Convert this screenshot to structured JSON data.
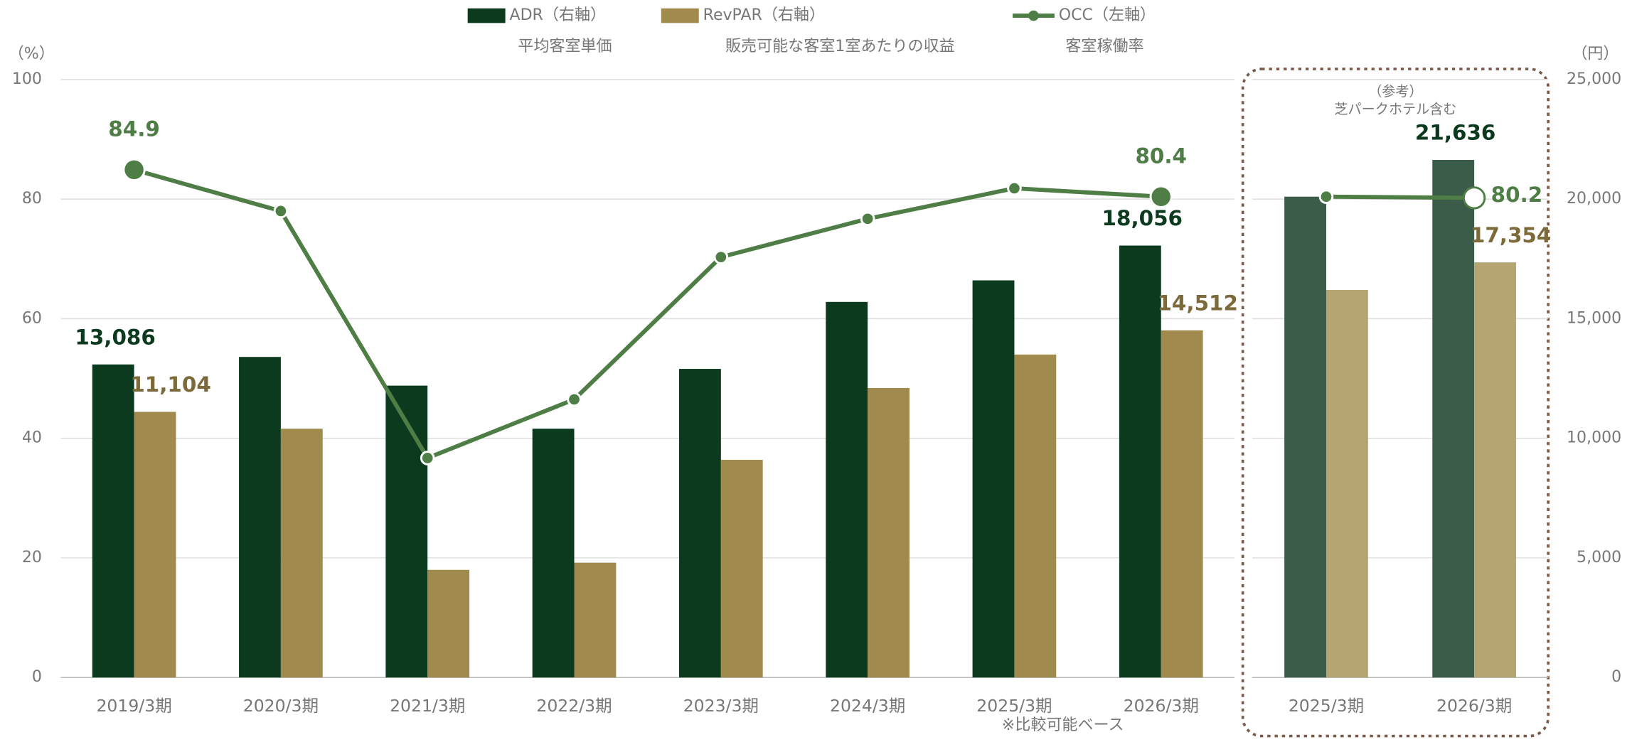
{
  "chart_data": [
    {
      "type": "bar-line",
      "legend": [
        {
          "name": "ADR（右軸）",
          "description": "平均客室単価"
        },
        {
          "name": "RevPAR（右軸）",
          "description": "販売可能な客室1室あたりの収益"
        },
        {
          "name": "OCC（左軸）",
          "description": "客室稼働率"
        }
      ],
      "ylabel": "（%）",
      "y2label": "（円）",
      "ylim": [
        0,
        100
      ],
      "yticks": [
        0,
        20,
        40,
        60,
        80,
        100
      ],
      "y2lim": [
        0,
        25000
      ],
      "y2ticks": [
        0,
        {
          "value": 5000,
          "label": "5,000"
        },
        {
          "value": 10000,
          "label": "10,000"
        },
        {
          "value": 15000,
          "label": "15,000"
        },
        {
          "value": 20000,
          "label": "20,000"
        },
        {
          "value": 25000,
          "label": "25,000"
        }
      ],
      "grid": true,
      "note": "※比較可能ベース",
      "categories": [
        "2019/3期",
        "2020/3期",
        "2021/3期",
        "2022/3期",
        "2023/3期",
        "2024/3期",
        "2025/3期",
        "2026/3期"
      ],
      "series": [
        {
          "name": "ADR",
          "kind": "bar",
          "axis": "y2",
          "color": "#0b3a1e",
          "values": [
            13086,
            13400,
            12200,
            10400,
            12900,
            15700,
            16600,
            18056
          ],
          "value_labels": [
            "13,086",
            null,
            null,
            null,
            null,
            null,
            null,
            "18,056"
          ]
        },
        {
          "name": "RevPAR",
          "kind": "bar",
          "axis": "y2",
          "color": "#a08a4e",
          "values": [
            11104,
            10400,
            4500,
            4800,
            9100,
            12100,
            13500,
            14512
          ],
          "value_labels": [
            "11,104",
            null,
            null,
            null,
            null,
            null,
            null,
            "14,512"
          ]
        },
        {
          "name": "OCC",
          "kind": "line",
          "axis": "y",
          "color": "#4e7d45",
          "values": [
            84.9,
            78.0,
            36.7,
            46.5,
            70.3,
            76.7,
            81.8,
            80.4
          ],
          "value_labels": [
            "84.9",
            null,
            null,
            null,
            null,
            null,
            null,
            "80.4"
          ]
        }
      ]
    },
    {
      "type": "bar-line",
      "title": [
        "（参考）",
        "芝パークホテル含む"
      ],
      "categories": [
        "2025/3期",
        "2026/3期"
      ],
      "series": [
        {
          "name": "ADR",
          "kind": "bar",
          "axis": "y2",
          "color": "#3a5c48",
          "values": [
            20100,
            21636
          ],
          "value_labels": [
            null,
            "21,636"
          ]
        },
        {
          "name": "RevPAR",
          "kind": "bar",
          "axis": "y2",
          "color": "#b5a572",
          "values": [
            16200,
            17354
          ],
          "value_labels": [
            null,
            "17,354"
          ]
        },
        {
          "name": "OCC",
          "kind": "line",
          "axis": "y",
          "color": "#4e7d45",
          "values": [
            80.4,
            80.2
          ],
          "value_labels": [
            null,
            "80.2"
          ]
        }
      ]
    }
  ]
}
